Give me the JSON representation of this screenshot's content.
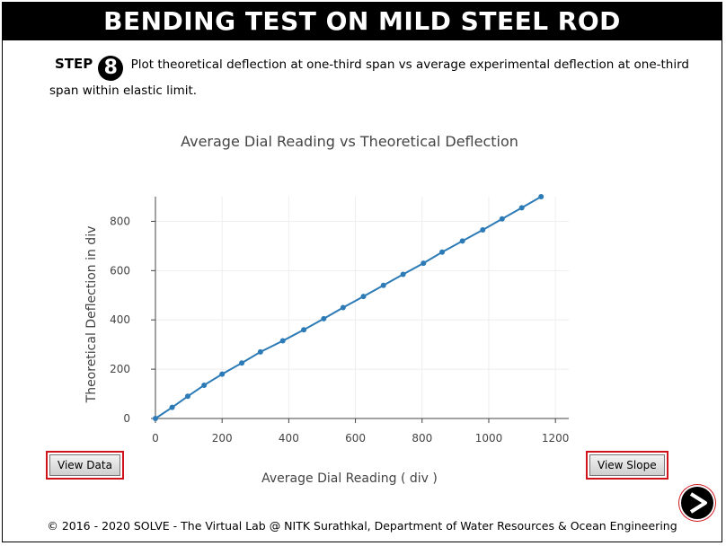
{
  "header": {
    "title": "BENDING TEST ON MILD STEEL ROD"
  },
  "step": {
    "label": "STEP",
    "number": "8",
    "text": "Plot theoretical deflection at one-third span vs average experimental deflection at one-third span within elastic limit."
  },
  "buttons": {
    "view_data": "View Data",
    "view_slope": "View Slope",
    "next_icon": "play-arrow-icon"
  },
  "footer": {
    "text": "© 2016 - 2020 SOLVE - The Virtual Lab @ NITK Surathkal, Department of Water Resources & Ocean Engineering"
  },
  "colors": {
    "series": "#2c7bb6",
    "button_highlight": "#d0141c",
    "title_bg": "#000000"
  },
  "chart_data": {
    "type": "line",
    "title": "Average Dial Reading vs Theoretical Deflection",
    "xlabel": "Average Dial Reading ( div )",
    "ylabel": "Theoretical Deflection in div",
    "xlim": [
      0,
      1240
    ],
    "ylim": [
      0,
      900
    ],
    "xticks": [
      0,
      200,
      400,
      600,
      800,
      1000,
      1200
    ],
    "yticks": [
      0,
      200,
      400,
      600,
      800
    ],
    "grid": true,
    "series": [
      {
        "x": [
          0,
          50,
          97,
          146,
          200,
          259,
          315,
          382,
          445,
          505,
          563,
          624,
          684,
          743,
          804,
          860,
          921,
          982,
          1040,
          1099,
          1157
        ],
        "y": [
          0,
          45,
          90,
          135,
          180,
          225,
          270,
          315,
          360,
          405,
          450,
          495,
          540,
          585,
          630,
          675,
          720,
          765,
          810,
          855,
          900
        ]
      }
    ]
  }
}
